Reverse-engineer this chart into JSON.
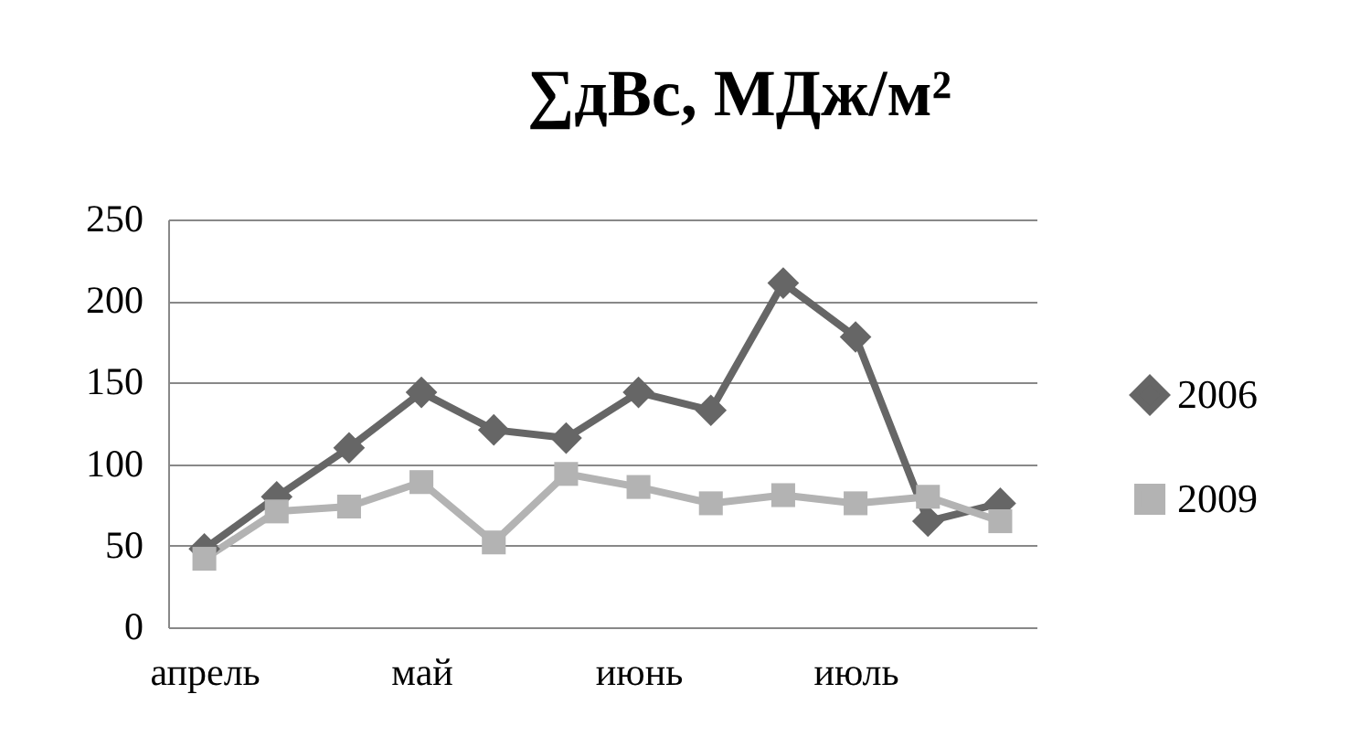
{
  "chart_data": {
    "type": "line",
    "title": "∑дВс, МДж/м²",
    "categories": [
      "апрель",
      null,
      null,
      "май",
      null,
      null,
      "июнь",
      null,
      null,
      "июль",
      null,
      null
    ],
    "series": [
      {
        "name": "2006",
        "color": "#666666",
        "marker": "diamond",
        "values": [
          48,
          80,
          110,
          144,
          121,
          116,
          144,
          133,
          211,
          178,
          65,
          76
        ]
      },
      {
        "name": "2009",
        "color": "#b3b3b3",
        "marker": "square",
        "values": [
          42,
          71,
          74,
          89,
          52,
          94,
          86,
          76,
          81,
          76,
          80,
          65
        ]
      }
    ],
    "ylim": [
      0,
      250
    ],
    "yticks": [
      0,
      50,
      100,
      150,
      200,
      250
    ],
    "grid": "y",
    "legend": "right",
    "line_style": "solid"
  }
}
